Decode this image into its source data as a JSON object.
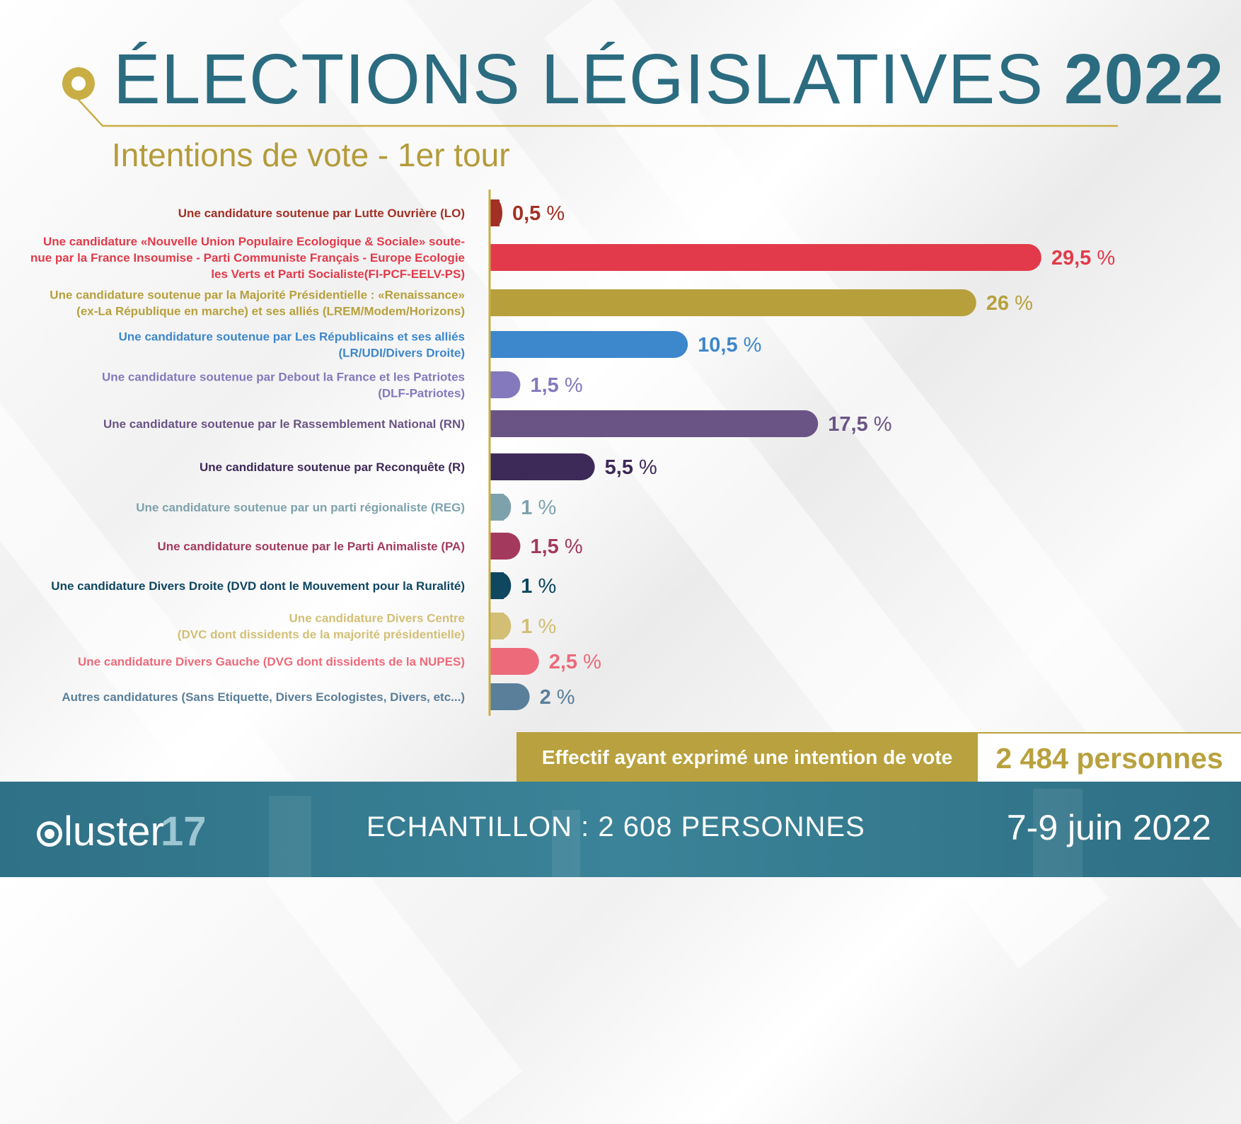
{
  "header": {
    "title_main": "ÉLECTIONS LÉGISLATIVES",
    "title_year": "2022",
    "subtitle": "Intentions de vote - 1er tour"
  },
  "chart_data": {
    "type": "bar",
    "orientation": "horizontal",
    "title": "ÉLECTIONS LÉGISLATIVES 2022",
    "subtitle": "Intentions de vote - 1er tour",
    "unit": "%",
    "xlim": [
      0,
      30
    ],
    "grid": false,
    "bars": [
      {
        "label_lines": [
          "Une candidature soutenue par Lutte Ouvrière (LO)"
        ],
        "value": 0.5,
        "display": "0,5",
        "color": "#a23024"
      },
      {
        "label_lines": [
          "Une candidature «Nouvelle Union Populaire Ecologique & Sociale» soute-",
          "nue par la France Insoumise - Parti Communiste Français - Europe Ecologie",
          "les Verts et Parti Socialiste(FI-PCF-EELV-PS)"
        ],
        "value": 29.5,
        "display": "29,5",
        "color": "#e23a4a"
      },
      {
        "label_lines": [
          "Une candidature soutenue par la Majorité Présidentielle : «Renaissance»",
          "(ex-La République en marche) et ses alliés (LREM/Modem/Horizons)"
        ],
        "value": 26,
        "display": "26",
        "color": "#b7a03c"
      },
      {
        "label_lines": [
          "Une candidature soutenue par Les Républicains et ses alliés",
          "(LR/UDI/Divers Droite)"
        ],
        "value": 10.5,
        "display": "10,5",
        "color": "#3d87cc"
      },
      {
        "label_lines": [
          "Une candidature soutenue par Debout la France et les Patriotes",
          "(DLF-Patriotes)"
        ],
        "value": 1.5,
        "display": "1,5",
        "color": "#8379bc"
      },
      {
        "label_lines": [
          "Une candidature soutenue par le Rassemblement National (RN)"
        ],
        "value": 17.5,
        "display": "17,5",
        "color": "#6a5485"
      },
      {
        "label_lines": [
          "Une candidature soutenue par Reconquête (R)"
        ],
        "value": 5.5,
        "display": "5,5",
        "color": "#3e2a58"
      },
      {
        "label_lines": [
          "Une candidature soutenue par un parti régionaliste (REG)"
        ],
        "value": 1,
        "display": "1",
        "color": "#7ea2ac"
      },
      {
        "label_lines": [
          "Une candidature soutenue par le Parti Animaliste (PA)"
        ],
        "value": 1.5,
        "display": "1,5",
        "color": "#a33a5e"
      },
      {
        "label_lines": [
          "Une candidature Divers Droite (DVD dont le Mouvement pour la Ruralité)"
        ],
        "value": 1,
        "display": "1",
        "color": "#0f4660"
      },
      {
        "label_lines": [
          "Une candidature Divers Centre",
          "(DVC dont dissidents de la majorité présidentielle)"
        ],
        "value": 1,
        "display": "1",
        "color": "#d2bf75"
      },
      {
        "label_lines": [
          "Une candidature Divers Gauche (DVG dont dissidents de la NUPES)"
        ],
        "value": 2.5,
        "display": "2,5",
        "color": "#ec6a7a"
      },
      {
        "label_lines": [
          "Autres candidatures (Sans Etiquette, Divers Ecologistes, Divers, etc...)"
        ],
        "value": 2,
        "display": "2",
        "color": "#5a7f9a"
      }
    ]
  },
  "effectif": {
    "label": "Effectif ayant exprimé une intention de vote",
    "value": "2 484 personnes"
  },
  "footer": {
    "logo_text": "luster",
    "logo_number": "17",
    "sample": "ECHANTILLON : 2 608 PERSONNES",
    "date": "7-9 juin 2022"
  },
  "colors": {
    "title": "#2b6c80",
    "gold": "#b8a13e",
    "footer_bg": "#3b8398"
  }
}
